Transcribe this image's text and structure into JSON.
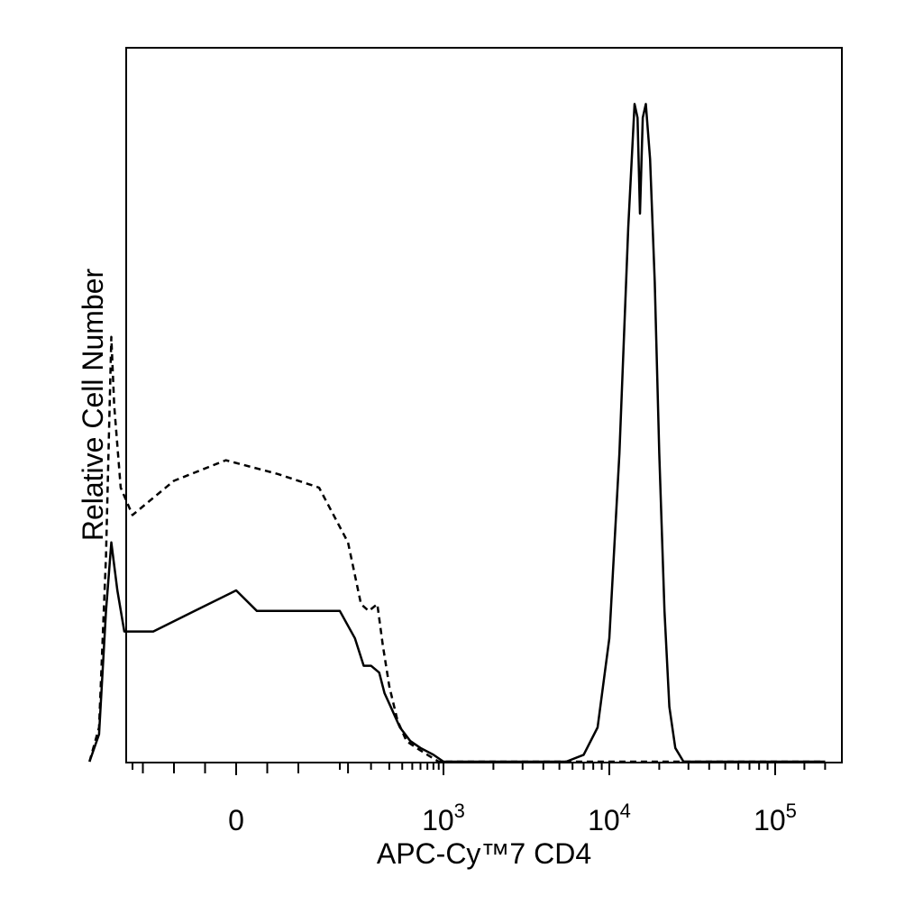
{
  "chart_data": {
    "type": "line",
    "title": "",
    "xlabel": "APC-Cy™7 CD4",
    "ylabel": "Relative Cell Number",
    "x_scale": "biexponential",
    "xlim": [
      -300,
      200000
    ],
    "ylim": [
      0,
      100
    ],
    "y_ticks": false,
    "grid": false,
    "legend": "none",
    "x_tick_labels": [
      {
        "value": 0,
        "base": "0",
        "exp": ""
      },
      {
        "value": 1000,
        "base": "10",
        "exp": "3"
      },
      {
        "value": 10000,
        "base": "10",
        "exp": "4"
      },
      {
        "value": 100000,
        "base": "10",
        "exp": "5"
      }
    ],
    "series": [
      {
        "style": "solid",
        "color": "#000000",
        "points": [
          [
            -260,
            0
          ],
          [
            -210,
            4
          ],
          [
            -180,
            22
          ],
          [
            -160,
            32
          ],
          [
            -140,
            25
          ],
          [
            -120,
            19
          ],
          [
            -80,
            19
          ],
          [
            -40,
            22
          ],
          [
            0,
            25
          ],
          [
            20,
            22
          ],
          [
            60,
            22
          ],
          [
            100,
            22
          ],
          [
            140,
            18
          ],
          [
            170,
            14
          ],
          [
            200,
            14
          ],
          [
            240,
            13
          ],
          [
            270,
            10
          ],
          [
            310,
            8
          ],
          [
            380,
            5
          ],
          [
            480,
            3
          ],
          [
            600,
            2
          ],
          [
            800,
            1
          ],
          [
            1000,
            0
          ],
          [
            5500,
            0
          ],
          [
            7000,
            1
          ],
          [
            8500,
            5
          ],
          [
            10000,
            18
          ],
          [
            11500,
            45
          ],
          [
            13000,
            78
          ],
          [
            14200,
            96
          ],
          [
            14800,
            94
          ],
          [
            15300,
            80
          ],
          [
            15900,
            94
          ],
          [
            16600,
            96
          ],
          [
            17600,
            88
          ],
          [
            18800,
            70
          ],
          [
            20000,
            45
          ],
          [
            21500,
            22
          ],
          [
            23000,
            8
          ],
          [
            25000,
            2
          ],
          [
            28000,
            0
          ],
          [
            200000,
            0
          ]
        ]
      },
      {
        "style": "dashed",
        "color": "#000000",
        "points": [
          [
            -260,
            0
          ],
          [
            -210,
            5
          ],
          [
            -180,
            30
          ],
          [
            -160,
            62
          ],
          [
            -150,
            52
          ],
          [
            -130,
            40
          ],
          [
            -100,
            36
          ],
          [
            -60,
            41
          ],
          [
            -10,
            44
          ],
          [
            40,
            42
          ],
          [
            80,
            40
          ],
          [
            120,
            32
          ],
          [
            160,
            23
          ],
          [
            190,
            22
          ],
          [
            230,
            23
          ],
          [
            260,
            17
          ],
          [
            300,
            11
          ],
          [
            360,
            6
          ],
          [
            440,
            3
          ],
          [
            550,
            2
          ],
          [
            700,
            1
          ],
          [
            900,
            0
          ],
          [
            200000,
            0
          ]
        ]
      }
    ]
  }
}
